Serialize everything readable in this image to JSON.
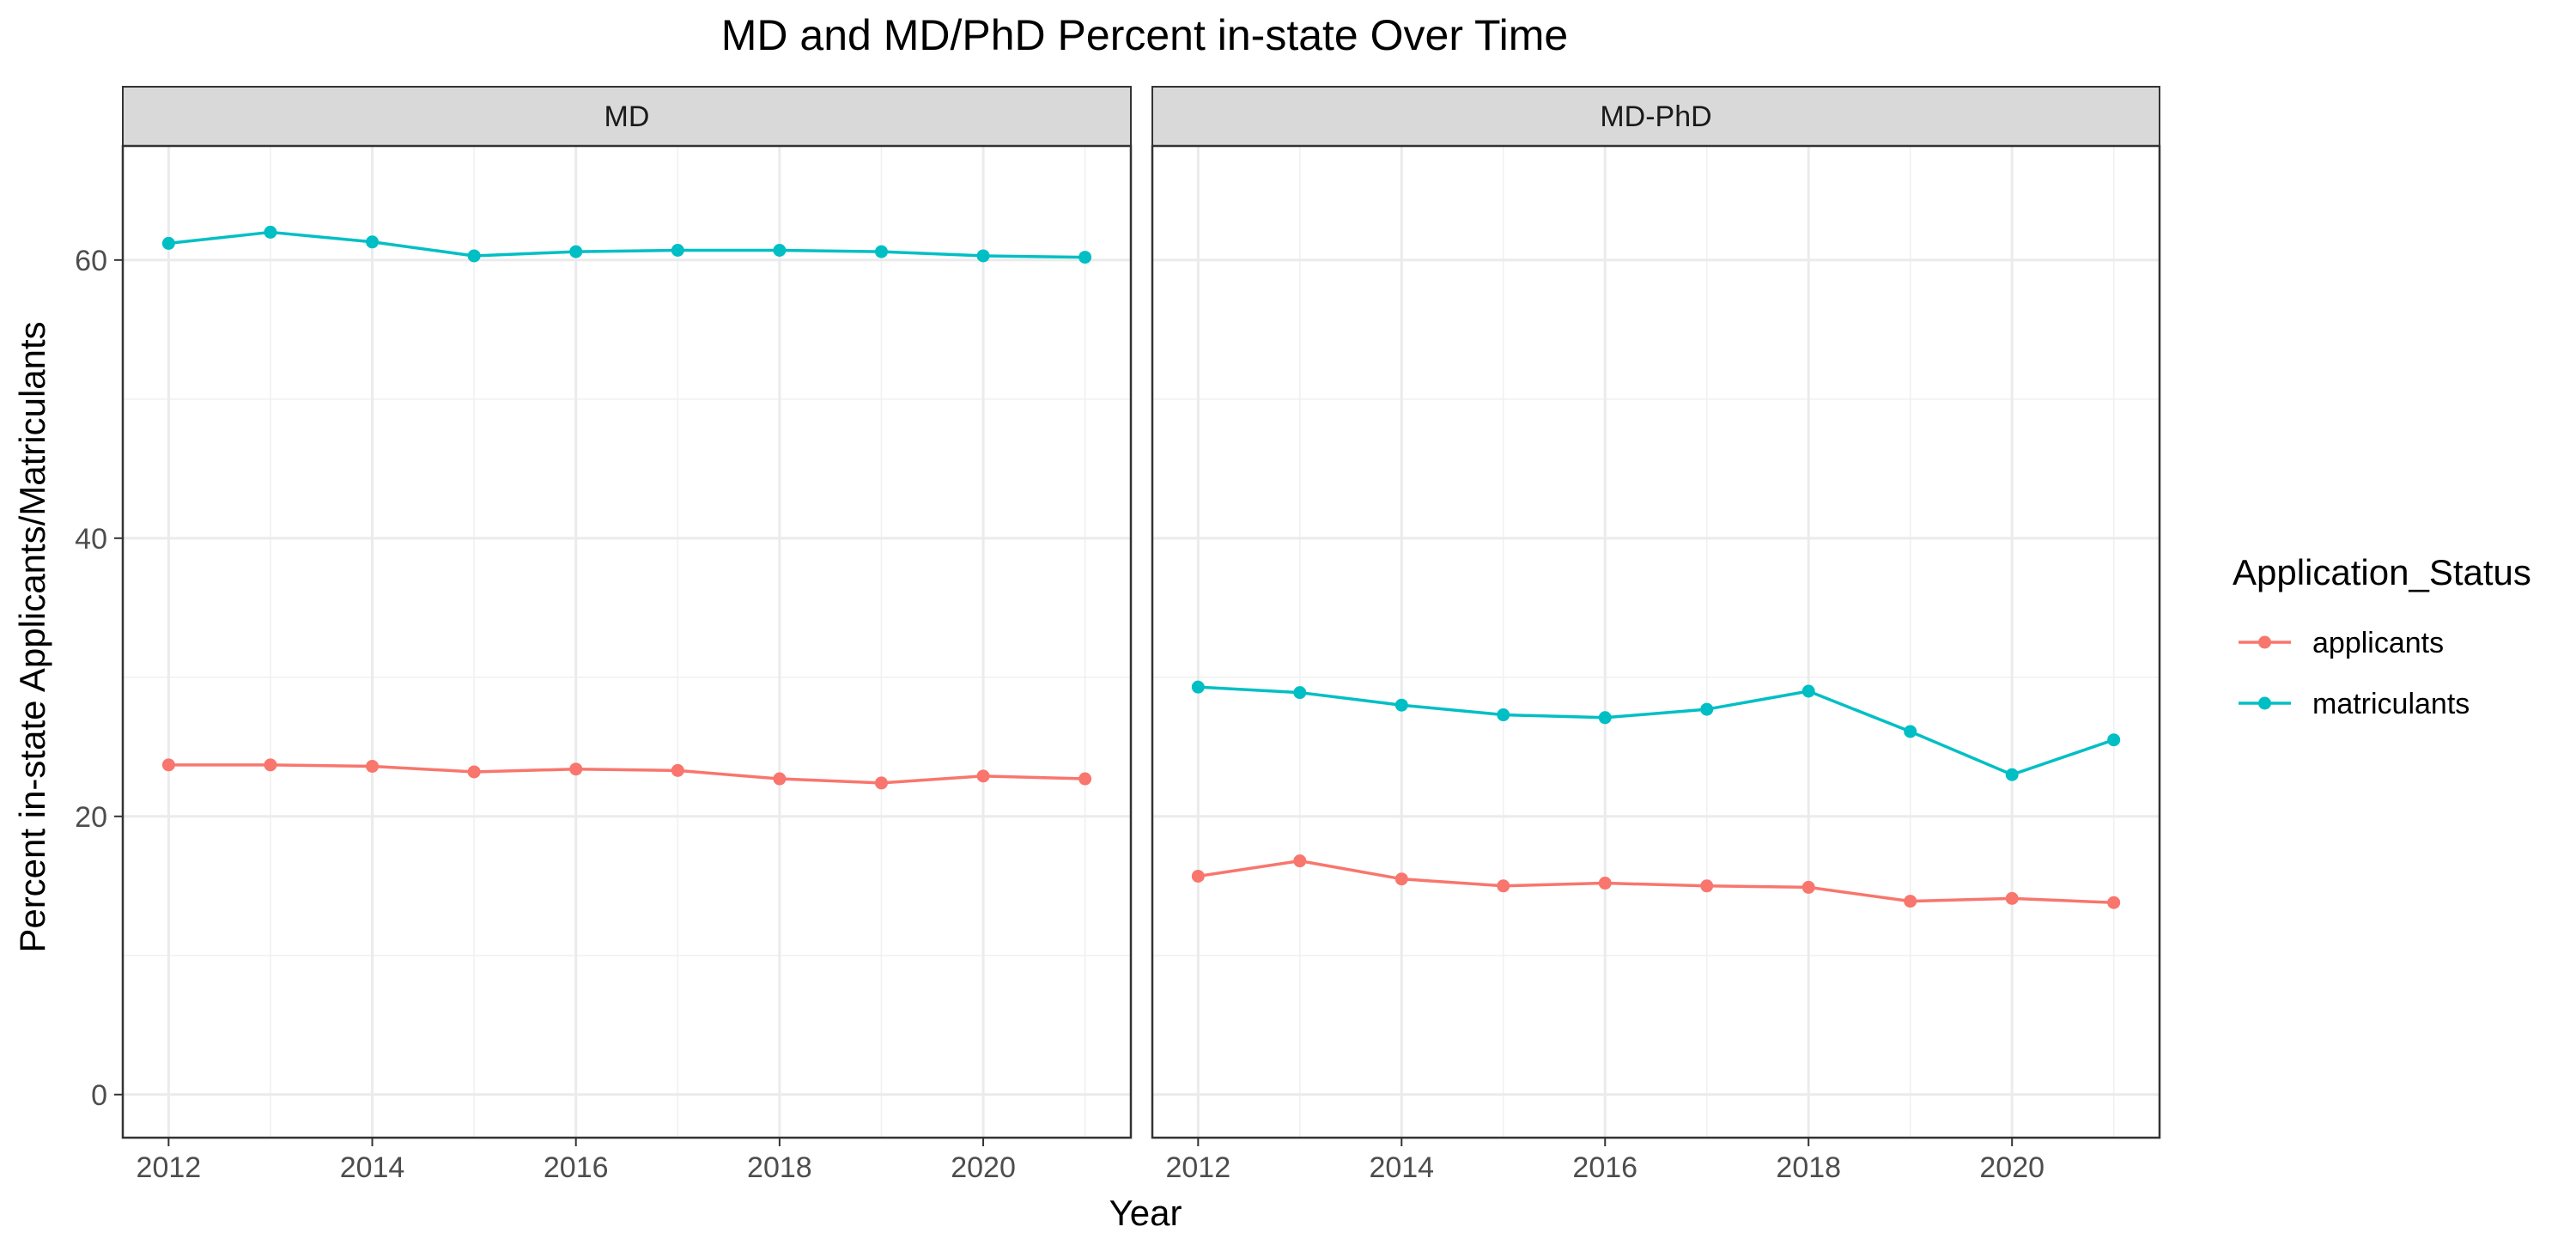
{
  "chart_data": {
    "type": "line",
    "title": "MD and MD/PhD Percent in-state Over Time",
    "xlabel": "Year",
    "ylabel": "Percent in-state Applicants/Matriculants",
    "x_ticks": [
      "2012",
      "2014",
      "2016",
      "2018",
      "2020"
    ],
    "y_ticks": [
      "0",
      "20",
      "40",
      "60"
    ],
    "xlim": [
      2011.55,
      2021.45
    ],
    "ylim": [
      -3.1,
      68.2
    ],
    "grid": true,
    "legend": {
      "title": "Application_Status",
      "position": "right",
      "entries": [
        "applicants",
        "matriculants"
      ]
    },
    "colors": {
      "applicants": "#F8766D",
      "matriculants": "#00BFC4"
    },
    "panels": [
      {
        "label": "MD",
        "x": [
          2012,
          2013,
          2014,
          2015,
          2016,
          2017,
          2018,
          2019,
          2020,
          2021
        ],
        "series": [
          {
            "name": "applicants",
            "values": [
              23.7,
              23.7,
              23.6,
              23.2,
              23.4,
              23.3,
              22.7,
              22.4,
              22.9,
              22.7
            ]
          },
          {
            "name": "matriculants",
            "values": [
              61.2,
              62.0,
              61.3,
              60.3,
              60.6,
              60.7,
              60.7,
              60.6,
              60.3,
              60.2
            ]
          }
        ]
      },
      {
        "label": "MD-PhD",
        "x": [
          2012,
          2013,
          2014,
          2015,
          2016,
          2017,
          2018,
          2019,
          2020,
          2021
        ],
        "series": [
          {
            "name": "applicants",
            "values": [
              15.7,
              16.8,
              15.5,
              15.0,
              15.2,
              15.0,
              14.9,
              13.9,
              14.1,
              13.8
            ]
          },
          {
            "name": "matriculants",
            "values": [
              29.3,
              28.9,
              28.0,
              27.3,
              27.1,
              27.7,
              29.0,
              26.1,
              23.0,
              25.5
            ]
          }
        ]
      }
    ]
  }
}
